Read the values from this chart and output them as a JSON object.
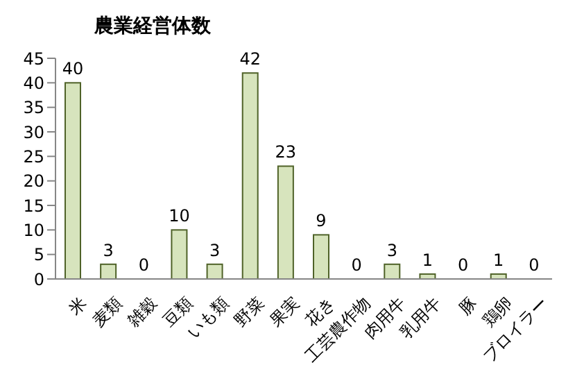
{
  "chart_data": {
    "type": "bar",
    "title": "農業経営体数",
    "categories": [
      "米",
      "麦類",
      "雑穀",
      "豆類",
      "いも類",
      "野菜",
      "果実",
      "花き",
      "工芸農作物",
      "肉用牛",
      "乳用牛",
      "豚",
      "鶏卵",
      "ブロイラー"
    ],
    "values": [
      40,
      3,
      0,
      10,
      3,
      42,
      23,
      9,
      0,
      3,
      1,
      0,
      1,
      0
    ],
    "color": "#d7e4bd",
    "ylim": [
      0,
      45
    ],
    "yticks": [
      0,
      5,
      10,
      15,
      20,
      25,
      30,
      35,
      40,
      45
    ],
    "data_labels": true
  }
}
